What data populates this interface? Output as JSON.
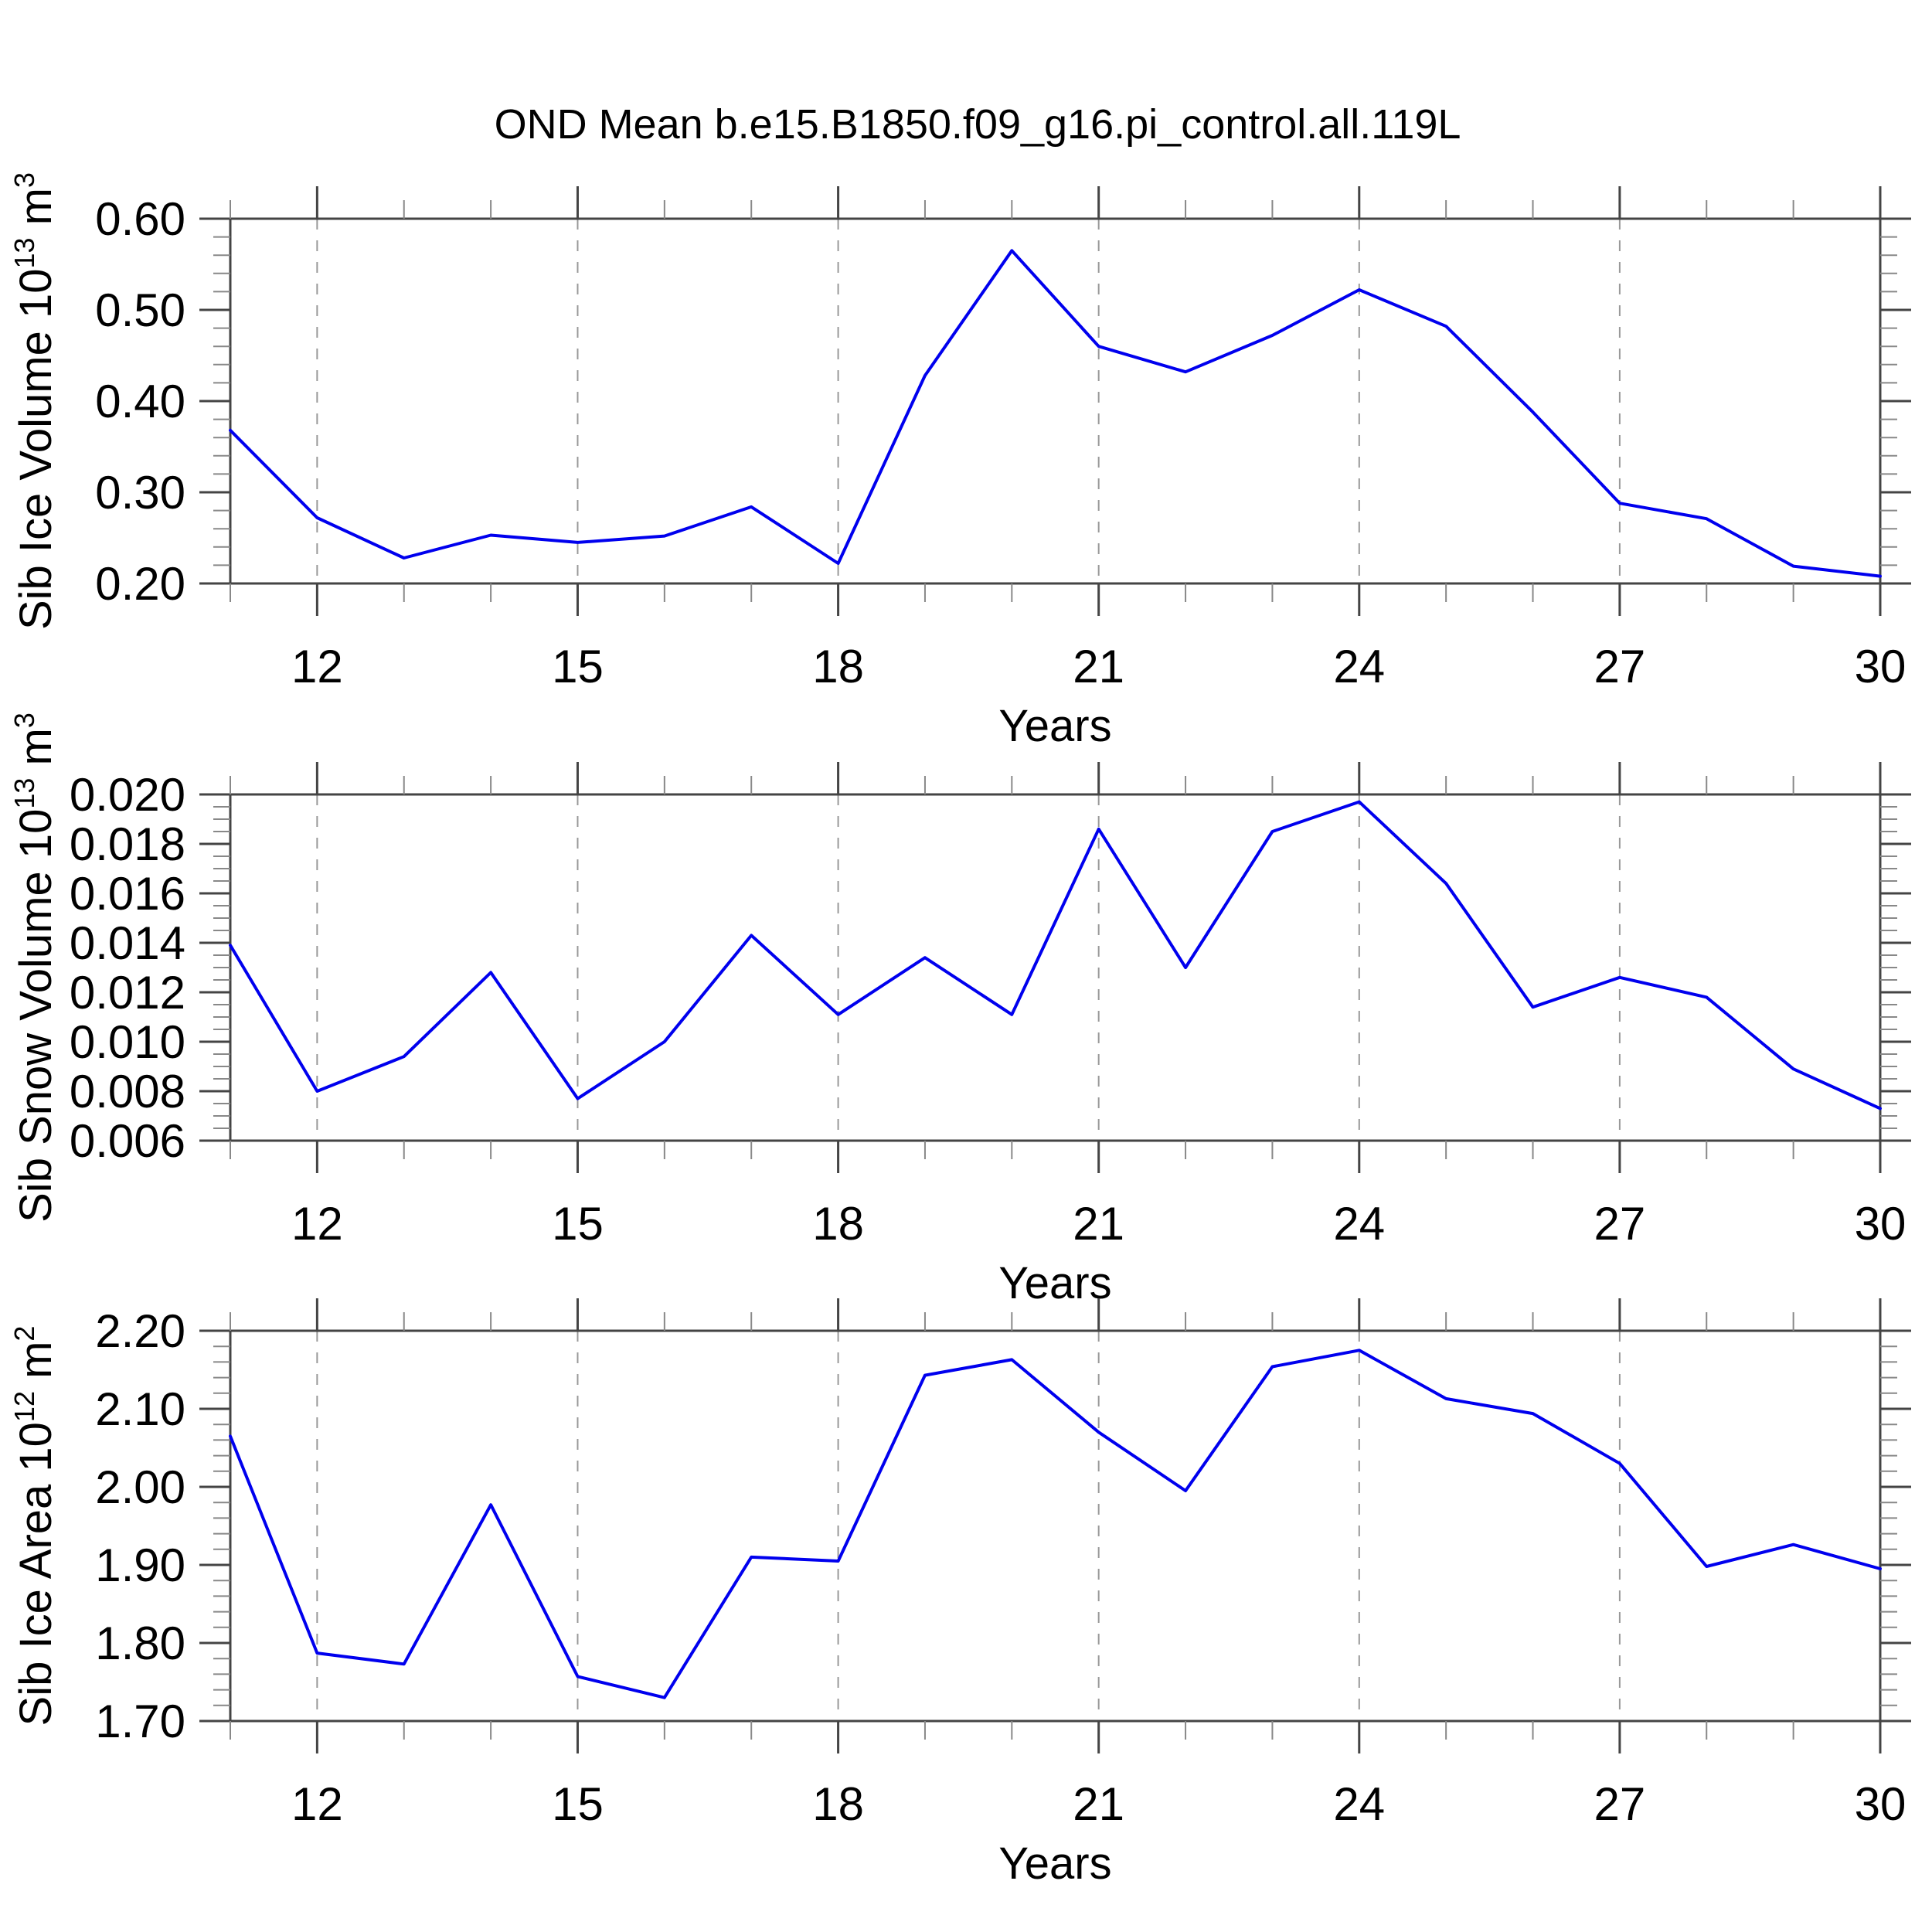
{
  "title": "OND Mean b.e15.B1850.f09_g16.pi_control.all.119L",
  "accent_color": "#0000ee",
  "grid_color": "#999999",
  "frame_color": "#444444",
  "minor_tick_color": "#888888",
  "chart_data": [
    {
      "type": "line",
      "name": "sib-ice-volume",
      "ylabel_plain": "Sib Ice Volume 10^13 m^3",
      "ylabel_parts": [
        {
          "text": "Sib Ice Volume 10",
          "sup": false
        },
        {
          "text": "13",
          "sup": true
        },
        {
          "text": " m",
          "sup": false
        },
        {
          "text": "3",
          "sup": true
        }
      ],
      "xlabel": "Years",
      "x": [
        11,
        12,
        13,
        14,
        15,
        16,
        17,
        18,
        19,
        20,
        21,
        22,
        23,
        24,
        25,
        26,
        27,
        28,
        29,
        30
      ],
      "values": [
        0.368,
        0.272,
        0.228,
        0.253,
        0.245,
        0.252,
        0.284,
        0.222,
        0.428,
        0.565,
        0.46,
        0.432,
        0.472,
        0.522,
        0.482,
        0.388,
        0.288,
        0.271,
        0.219,
        0.208
      ],
      "ylim": [
        0.2,
        0.6
      ],
      "ytick_values": [
        0.2,
        0.3,
        0.4,
        0.5,
        0.6
      ],
      "ytick_labels": [
        "0.20",
        "0.30",
        "0.40",
        "0.50",
        "0.60"
      ],
      "yminor_step": 0.02,
      "xlim": [
        11,
        30
      ],
      "xtick_values": [
        12,
        15,
        18,
        21,
        24,
        27,
        30
      ],
      "xtick_labels": [
        "12",
        "15",
        "18",
        "21",
        "24",
        "27",
        "30"
      ],
      "xminor_step": 1,
      "grid": "vertical-dashed-at-major",
      "legend": "none"
    },
    {
      "type": "line",
      "name": "sib-snow-volume",
      "ylabel_plain": "Sib Snow Volume 10^13 m^3",
      "ylabel_parts": [
        {
          "text": "Sib Snow Volume 10",
          "sup": false
        },
        {
          "text": "13",
          "sup": true
        },
        {
          "text": " m",
          "sup": false
        },
        {
          "text": "3",
          "sup": true
        }
      ],
      "xlabel": "Years",
      "x": [
        11,
        12,
        13,
        14,
        15,
        16,
        17,
        18,
        19,
        20,
        21,
        22,
        23,
        24,
        25,
        26,
        27,
        28,
        29,
        30
      ],
      "values": [
        0.0139,
        0.008,
        0.0094,
        0.0128,
        0.0077,
        0.01,
        0.0143,
        0.0111,
        0.0134,
        0.0111,
        0.0186,
        0.013,
        0.0185,
        0.0197,
        0.0164,
        0.0114,
        0.0126,
        0.0118,
        0.0089,
        0.0073
      ],
      "ylim": [
        0.006,
        0.02
      ],
      "ytick_values": [
        0.006,
        0.008,
        0.01,
        0.012,
        0.014,
        0.016,
        0.018,
        0.02
      ],
      "ytick_labels": [
        "0.006",
        "0.008",
        "0.010",
        "0.012",
        "0.014",
        "0.016",
        "0.018",
        "0.020"
      ],
      "yminor_step": 0.0005,
      "xlim": [
        11,
        30
      ],
      "xtick_values": [
        12,
        15,
        18,
        21,
        24,
        27,
        30
      ],
      "xtick_labels": [
        "12",
        "15",
        "18",
        "21",
        "24",
        "27",
        "30"
      ],
      "xminor_step": 1,
      "grid": "vertical-dashed-at-major",
      "legend": "none"
    },
    {
      "type": "line",
      "name": "sib-ice-area",
      "ylabel_plain": "Sib Ice Area 10^12 m^2",
      "ylabel_parts": [
        {
          "text": "Sib Ice Area 10",
          "sup": false
        },
        {
          "text": "12",
          "sup": true
        },
        {
          "text": " m",
          "sup": false
        },
        {
          "text": "2",
          "sup": true
        }
      ],
      "xlabel": "Years",
      "x": [
        11,
        12,
        13,
        14,
        15,
        16,
        17,
        18,
        19,
        20,
        21,
        22,
        23,
        24,
        25,
        26,
        27,
        28,
        29,
        30
      ],
      "values": [
        2.065,
        1.787,
        1.773,
        1.977,
        1.757,
        1.73,
        1.91,
        1.905,
        2.143,
        2.163,
        2.07,
        1.995,
        2.154,
        2.175,
        2.113,
        2.094,
        2.03,
        1.898,
        1.926,
        1.895
      ],
      "ylim": [
        1.7,
        2.2
      ],
      "ytick_values": [
        1.7,
        1.8,
        1.9,
        2.0,
        2.1,
        2.2
      ],
      "ytick_labels": [
        "1.70",
        "1.80",
        "1.90",
        "2.00",
        "2.10",
        "2.20"
      ],
      "yminor_step": 0.02,
      "xlim": [
        11,
        30
      ],
      "xtick_values": [
        12,
        15,
        18,
        21,
        24,
        27,
        30
      ],
      "xtick_labels": [
        "12",
        "15",
        "18",
        "21",
        "24",
        "27",
        "30"
      ],
      "xminor_step": 1,
      "grid": "vertical-dashed-at-major",
      "legend": "none"
    }
  ]
}
